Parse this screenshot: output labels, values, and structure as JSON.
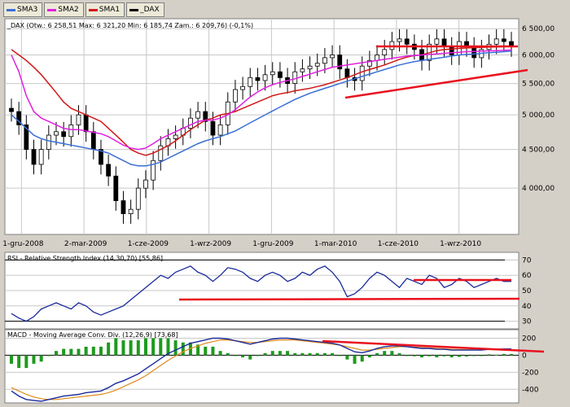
{
  "legend_buttons": [
    {
      "label": "SMA3",
      "color": "#3a6fd8"
    },
    {
      "label": "SMA2",
      "color": "#e020e0"
    },
    {
      "label": "SMA1",
      "color": "#d01818"
    },
    {
      "label": "_DAX",
      "color": "#000000"
    }
  ],
  "colors": {
    "bg": "#ffffff",
    "frame": "#d4d0c8",
    "grid": "#c8c8c8",
    "trendline": "#e8121e"
  },
  "chart_data": [
    {
      "type": "candlestick",
      "title": "_DAX (Otw.: 6 258,51  Max: 6 321,20  Min: 6 185,74  Zam.: 6 209,76) (-0,1%)",
      "x_ticks": [
        "1-gru-2008",
        "2-mar-2009",
        "1-cze-2009",
        "1-wrz-2009",
        "1-gru-2009",
        "1-mar-2010",
        "1-cze-2010",
        "1-wrz-2010"
      ],
      "y_ticks": [
        "6 500,00",
        "6 000,00",
        "5 500,00",
        "5 000,00",
        "4 500,00",
        "4 000,00"
      ],
      "y_tick_values": [
        6500,
        6000,
        5500,
        5000,
        4500,
        4000
      ],
      "ylim": [
        3500,
        6700
      ],
      "log_scale": true,
      "grid": true,
      "close": [
        5050,
        4850,
        4500,
        4300,
        4500,
        4700,
        4750,
        4680,
        4850,
        5000,
        4750,
        4500,
        4300,
        4150,
        3850,
        3700,
        3750,
        4000,
        4100,
        4350,
        4550,
        4650,
        4700,
        4800,
        4950,
        5050,
        4900,
        4700,
        4850,
        5200,
        5400,
        5450,
        5600,
        5550,
        5650,
        5700,
        5600,
        5500,
        5700,
        5750,
        5800,
        5850,
        5950,
        6000,
        5750,
        5600,
        5550,
        5800,
        5900,
        6000,
        6100,
        6250,
        6300,
        6200,
        6100,
        5900,
        6200,
        6300,
        6150,
        6000,
        6250,
        6150,
        5950,
        6100,
        6200,
        6300,
        6250,
        6150
      ],
      "series": [
        {
          "name": "SMA1",
          "values": [
            6100,
            6000,
            5900,
            5780,
            5650,
            5500,
            5350,
            5200,
            5100,
            5050,
            5000,
            4950,
            4900,
            4800,
            4700,
            4600,
            4500,
            4450,
            4420,
            4450,
            4500,
            4550,
            4620,
            4700,
            4780,
            4850,
            4920,
            4950,
            5000,
            5020,
            5050,
            5100,
            5150,
            5200,
            5250,
            5300,
            5330,
            5350,
            5380,
            5400,
            5420,
            5450,
            5480,
            5520,
            5560,
            5600,
            5650,
            5700,
            5740,
            5780,
            5820,
            5870,
            5920,
            5960,
            5990,
            6000,
            6040,
            6080,
            6100,
            6110,
            6120,
            6130,
            6135,
            6140,
            6145,
            6150,
            6155,
            6160
          ]
        },
        {
          "name": "SMA2",
          "values": [
            6000,
            5700,
            5300,
            5050,
            4950,
            4900,
            4850,
            4800,
            4780,
            4780,
            4760,
            4740,
            4720,
            4680,
            4620,
            4560,
            4520,
            4500,
            4520,
            4580,
            4650,
            4700,
            4750,
            4800,
            4850,
            4900,
            4920,
            4920,
            4950,
            5000,
            5080,
            5180,
            5280,
            5360,
            5430,
            5480,
            5520,
            5550,
            5580,
            5620,
            5660,
            5700,
            5740,
            5780,
            5800,
            5820,
            5840,
            5860,
            5880,
            5900,
            5920,
            5940,
            5960,
            5980,
            5990,
            6000,
            6010,
            6020,
            6030,
            6040,
            6050,
            6060,
            6065,
            6070,
            6075,
            6080,
            6085,
            6090
          ]
        },
        {
          "name": "SMA3",
          "values": [
            5000,
            4900,
            4800,
            4700,
            4650,
            4620,
            4600,
            4580,
            4560,
            4540,
            4520,
            4500,
            4480,
            4450,
            4400,
            4350,
            4300,
            4280,
            4280,
            4300,
            4330,
            4380,
            4430,
            4480,
            4530,
            4580,
            4620,
            4650,
            4680,
            4720,
            4760,
            4820,
            4880,
            4940,
            5000,
            5060,
            5120,
            5180,
            5240,
            5290,
            5340,
            5380,
            5420,
            5460,
            5500,
            5540,
            5580,
            5620,
            5660,
            5700,
            5740,
            5780,
            5820,
            5850,
            5880,
            5900,
            5920,
            5940,
            5960,
            5980,
            6000,
            6010,
            6020,
            6030,
            6040,
            6050,
            6060,
            6070
          ]
        }
      ]
    },
    {
      "type": "line",
      "title": "RSI - Relative Strength Index (14,30,70) [55,86]",
      "y_ticks": [
        "70",
        "60",
        "50",
        "40",
        "30"
      ],
      "y_tick_values": [
        70,
        60,
        50,
        40,
        30
      ],
      "ylim": [
        25,
        75
      ],
      "reference_lines": [
        30,
        70
      ],
      "series": [
        {
          "name": "RSI",
          "values": [
            35,
            32,
            30,
            33,
            38,
            40,
            42,
            40,
            38,
            42,
            40,
            36,
            34,
            36,
            38,
            40,
            44,
            48,
            52,
            56,
            60,
            58,
            62,
            64,
            66,
            62,
            60,
            56,
            60,
            65,
            64,
            62,
            58,
            56,
            60,
            62,
            60,
            56,
            58,
            62,
            60,
            64,
            66,
            62,
            56,
            46,
            48,
            52,
            58,
            62,
            60,
            56,
            52,
            58,
            56,
            54,
            60,
            58,
            52,
            54,
            58,
            56,
            52,
            54,
            56,
            58,
            56,
            56
          ]
        }
      ]
    },
    {
      "type": "bar+line",
      "title": "MACD - Moving Average Conv. Div. (12,26,9) [73,68]",
      "y_ticks": [
        "200",
        "0",
        "-200",
        "-400"
      ],
      "y_tick_values": [
        200,
        0,
        -200,
        -400
      ],
      "ylim": [
        -560,
        300
      ],
      "series": [
        {
          "name": "MACD",
          "values": [
            -420,
            -480,
            -520,
            -530,
            -540,
            -520,
            -500,
            -480,
            -470,
            -460,
            -440,
            -430,
            -420,
            -380,
            -330,
            -300,
            -260,
            -220,
            -160,
            -100,
            -40,
            20,
            60,
            100,
            140,
            160,
            180,
            200,
            200,
            190,
            170,
            150,
            130,
            150,
            170,
            190,
            200,
            200,
            190,
            180,
            170,
            160,
            150,
            140,
            120,
            80,
            40,
            30,
            50,
            80,
            100,
            110,
            110,
            100,
            90,
            80,
            80,
            70,
            70,
            60,
            60,
            60,
            60,
            60,
            70,
            70,
            74,
            74
          ]
        },
        {
          "name": "Signal",
          "values": [
            -380,
            -420,
            -460,
            -490,
            -510,
            -520,
            -520,
            -510,
            -500,
            -490,
            -480,
            -470,
            -460,
            -440,
            -410,
            -370,
            -330,
            -290,
            -240,
            -180,
            -120,
            -60,
            -10,
            40,
            80,
            110,
            140,
            160,
            180,
            180,
            170,
            160,
            150,
            150,
            160,
            170,
            180,
            180,
            180,
            170,
            160,
            150,
            140,
            130,
            120,
            100,
            80,
            60,
            60,
            70,
            80,
            90,
            100,
            100,
            95,
            90,
            85,
            80,
            75,
            70,
            68,
            66,
            64,
            64,
            66,
            68,
            68,
            68
          ]
        }
      ]
    }
  ]
}
